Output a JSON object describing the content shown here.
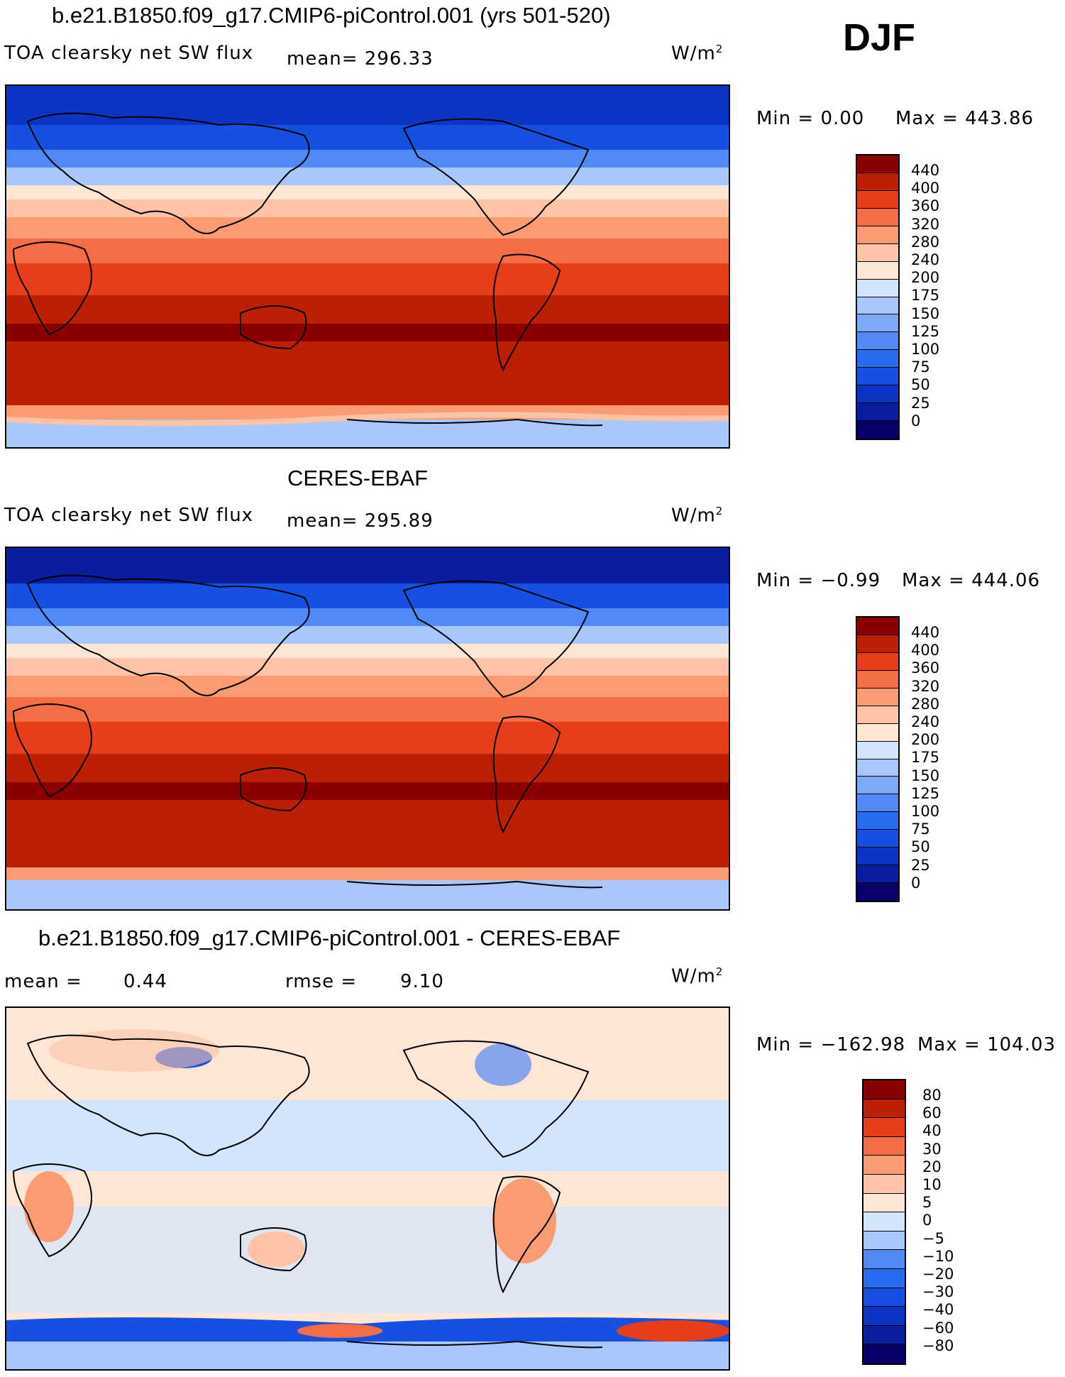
{
  "season": "DJF",
  "colors": {
    "abs_scale": [
      "#08006a",
      "#0a1ca0",
      "#0d35c4",
      "#1550e0",
      "#2a6cf0",
      "#5189f5",
      "#7ea9f7",
      "#a8c7fa",
      "#d3e5fc",
      "#fde6d6",
      "#fcc3a6",
      "#f99b73",
      "#f56d44",
      "#e53e18",
      "#bb2003",
      "#8a0000"
    ],
    "diff_scale": [
      "#08006a",
      "#0a1ca0",
      "#0d35c4",
      "#1550e0",
      "#2a6cf0",
      "#5189f5",
      "#a8c7fa",
      "#d3e5fc",
      "#fde6d6",
      "#fcc3a6",
      "#f99b73",
      "#f56d44",
      "#e53e18",
      "#bb2003",
      "#8a0000"
    ]
  },
  "panels": [
    {
      "title": "b.e21.B1850.f09_g17.CMIP6-piControl.001 (yrs 501-520)",
      "variable": "TOA clearsky net SW flux",
      "mean_text": "mean= 296.33",
      "units": "W/m",
      "units_sup": "2",
      "min_text": "Min =    0.00",
      "max_text": "Max = 443.86",
      "levels": [
        "440",
        "400",
        "360",
        "320",
        "280",
        "240",
        "200",
        "175",
        "150",
        "125",
        "100",
        "75",
        "50",
        "25",
        "0"
      ]
    },
    {
      "title": "CERES-EBAF",
      "variable": "TOA clearsky net SW flux",
      "mean_text": "mean= 295.89",
      "units": "W/m",
      "units_sup": "2",
      "min_text": "Min =  −0.99",
      "max_text": "Max = 444.06",
      "levels": [
        "440",
        "400",
        "360",
        "320",
        "280",
        "240",
        "200",
        "175",
        "150",
        "125",
        "100",
        "75",
        "50",
        "25",
        "0"
      ]
    },
    {
      "title": "b.e21.B1850.f09_g17.CMIP6-piControl.001 - CERES-EBAF",
      "mean_label": "mean =",
      "mean_value": "0.44",
      "rmse_label": "rmse =",
      "rmse_value": "9.10",
      "units": "W/m",
      "units_sup": "2",
      "min_text": "Min = −162.98",
      "max_text": "Max = 104.03",
      "levels": [
        "80",
        "60",
        "40",
        "30",
        "20",
        "10",
        "5",
        "0",
        "−5",
        "−10",
        "−20",
        "−30",
        "−40",
        "−60",
        "−80"
      ]
    }
  ]
}
